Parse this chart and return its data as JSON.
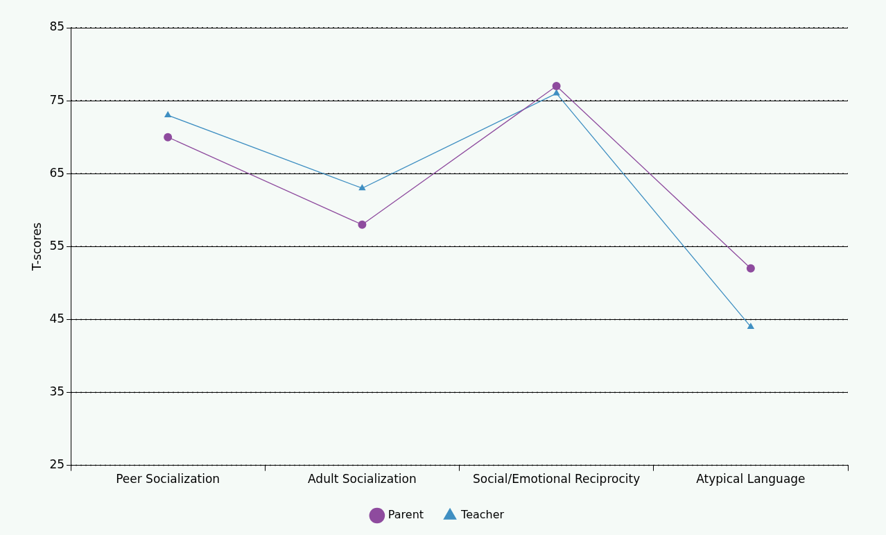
{
  "chart_data": {
    "type": "line",
    "ylabel": "T-scores",
    "categories": [
      "Peer Socialization",
      "Adult Socialization",
      "Social/Emotional Reciprocity",
      "Atypical Language"
    ],
    "series": [
      {
        "name": "Parent",
        "color": "#8e4b9e",
        "values": [
          70,
          58,
          77,
          52
        ],
        "marker": "circle"
      },
      {
        "name": "Teacher",
        "color": "#3f8fc2",
        "values": [
          73,
          63,
          76,
          44
        ],
        "marker": "triangle"
      }
    ],
    "ylim": [
      25,
      85
    ],
    "yticks": [
      25,
      35,
      45,
      55,
      65,
      75,
      85
    ],
    "grid": "y",
    "legend": "bottom",
    "line_style": "solid"
  }
}
